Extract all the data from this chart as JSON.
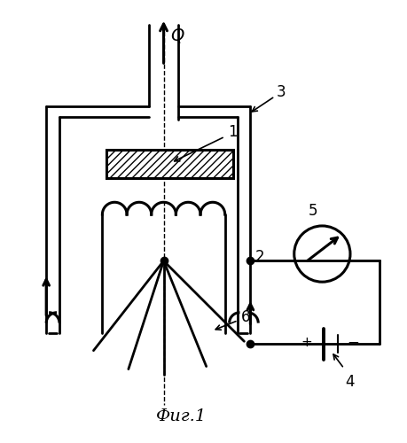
{
  "title": "Фиг.1",
  "background_color": "#ffffff",
  "line_color": "#000000"
}
